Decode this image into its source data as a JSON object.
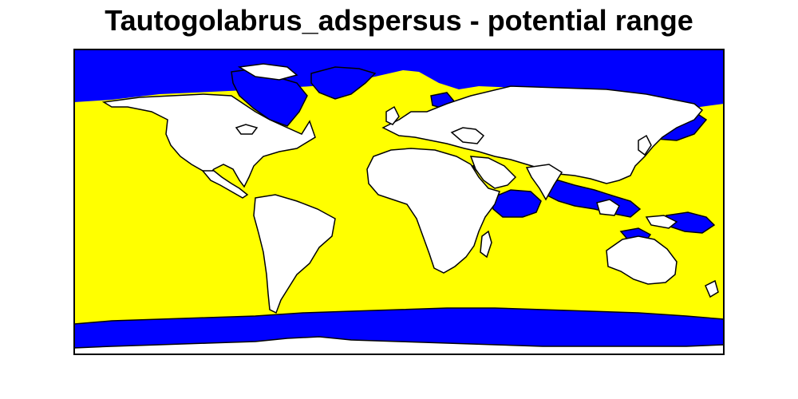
{
  "title": "Tautogolabrus_adspersus - potential range",
  "colors": {
    "background": "#ffffff",
    "suitable_range": "#ffff00",
    "unsuitable_ocean": "#0000ff",
    "land": "#ffffff",
    "outline": "#000000"
  },
  "map": {
    "projection": "equirectangular",
    "extent": "world"
  }
}
